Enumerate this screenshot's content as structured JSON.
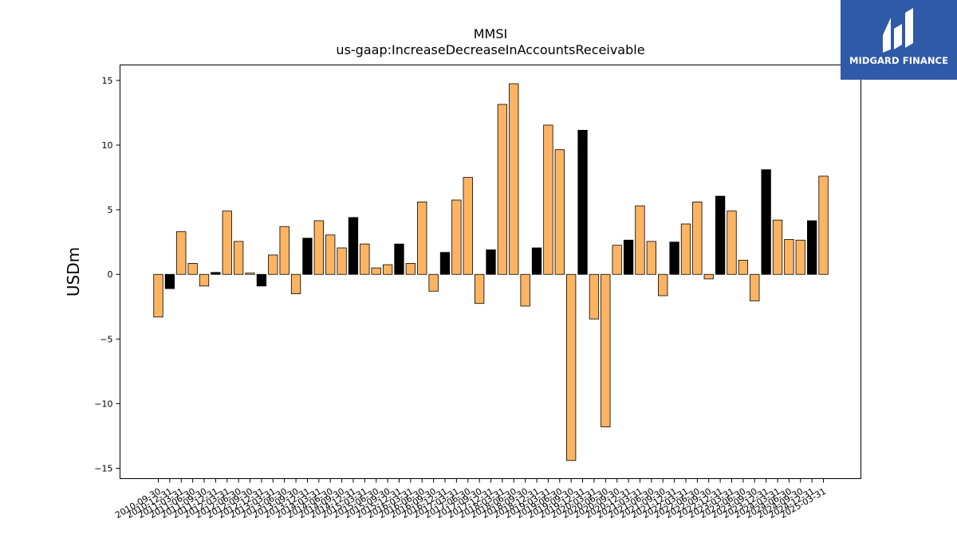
{
  "chart_data": {
    "type": "bar",
    "title": "MMSI",
    "subtitle": "us-gaap:IncreaseDecreaseInAccountsReceivable",
    "ylabel": "USDm",
    "ylim": [
      -15.8,
      16.2
    ],
    "yticks": [
      15,
      10,
      5,
      0,
      -5,
      -10,
      -15
    ],
    "ytick_labels": [
      "15",
      "10",
      "5",
      "0",
      "−5",
      "−10",
      "−15"
    ],
    "categories": [
      "2010-09-30",
      "2010-12-31",
      "2011-03-31",
      "2011-06-30",
      "2011-09-30",
      "2011-12-31",
      "2012-03-31",
      "2012-06-30",
      "2012-09-30",
      "2012-12-31",
      "2013-03-31",
      "2013-06-30",
      "2013-09-30",
      "2013-12-31",
      "2014-03-31",
      "2014-06-30",
      "2014-09-30",
      "2014-12-31",
      "2015-03-31",
      "2015-06-30",
      "2015-09-30",
      "2015-12-31",
      "2016-03-31",
      "2016-06-30",
      "2016-09-30",
      "2016-12-31",
      "2017-03-31",
      "2017-06-30",
      "2017-09-30",
      "2017-12-31",
      "2018-03-31",
      "2018-06-30",
      "2018-09-30",
      "2018-12-31",
      "2019-03-31",
      "2019-06-30",
      "2019-09-30",
      "2019-12-31",
      "2020-03-31",
      "2020-06-30",
      "2020-09-30",
      "2020-12-31",
      "2021-03-31",
      "2021-06-30",
      "2021-09-30",
      "2021-12-31",
      "2022-03-31",
      "2022-06-30",
      "2022-09-30",
      "2022-12-31",
      "2023-03-31",
      "2023-06-30",
      "2023-09-30",
      "2023-12-31",
      "2024-03-31",
      "2024-06-30",
      "2024-09-30",
      "2024-12-31",
      "2025-03-31"
    ],
    "values": [
      -3.3,
      -1.1,
      3.3,
      0.85,
      -0.9,
      0.15,
      4.9,
      2.55,
      0.1,
      -0.9,
      1.5,
      3.7,
      -1.5,
      2.8,
      4.15,
      3.05,
      2.05,
      4.4,
      2.35,
      0.5,
      0.75,
      2.35,
      0.85,
      5.6,
      -1.3,
      1.7,
      5.75,
      7.5,
      -2.25,
      1.9,
      13.15,
      14.75,
      -2.45,
      2.05,
      11.55,
      9.65,
      -14.4,
      11.15,
      -3.45,
      -11.8,
      2.25,
      2.65,
      5.3,
      2.55,
      -1.65,
      2.5,
      3.9,
      5.6,
      -0.35,
      6.05,
      4.9,
      1.1,
      -2.05,
      8.1,
      4.2,
      2.7,
      2.65,
      4.15,
      7.6
    ],
    "highlight": [
      false,
      true,
      false,
      false,
      false,
      true,
      false,
      false,
      false,
      true,
      false,
      false,
      false,
      true,
      false,
      false,
      false,
      true,
      false,
      false,
      false,
      true,
      false,
      false,
      false,
      true,
      false,
      false,
      false,
      true,
      false,
      false,
      false,
      true,
      false,
      false,
      false,
      true,
      false,
      false,
      false,
      true,
      false,
      false,
      false,
      true,
      false,
      false,
      false,
      true,
      false,
      false,
      false,
      true,
      false,
      false,
      false,
      true,
      false
    ],
    "colors": {
      "bar": "#fdb462",
      "highlight": "#000000",
      "edge": "#000000"
    }
  },
  "logo": {
    "text": "MIDGARD FINANCE",
    "background": "#2f5aa8"
  }
}
